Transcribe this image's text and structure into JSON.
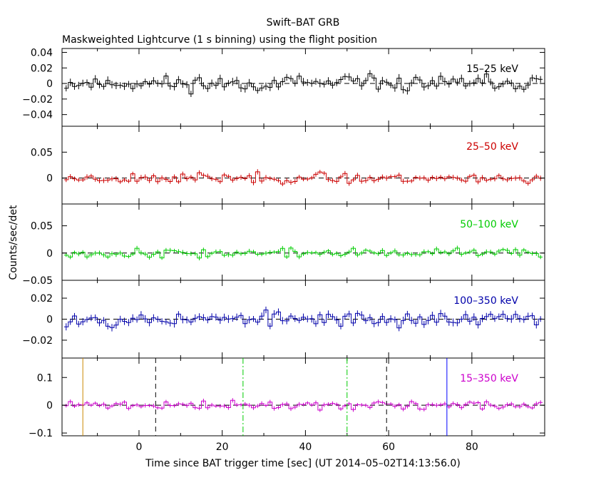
{
  "chart_data": {
    "type": "line",
    "title": "Swift–BAT GRB",
    "subtitle": "Maskweighted Lightcurve (1 s binning) using the flight position",
    "xlabel": "Time since BAT trigger time [sec] (UT 2014–05–02T14:13:56.0)",
    "ylabel": "Counts/sec/det",
    "xlim": [
      -18.5,
      97.5
    ],
    "x_ticks": [
      0,
      20,
      40,
      60,
      80
    ],
    "x_tick_labels": [
      "0",
      "20",
      "40",
      "60",
      "80"
    ],
    "panels": [
      {
        "name": "15–25 keV",
        "color": "#000000",
        "ylim": [
          -0.055,
          0.045
        ],
        "y_ticks": [
          -0.04,
          -0.02,
          0,
          0.02,
          0.04
        ],
        "y_tick_labels": [
          "−0.04",
          "−0.02",
          "0",
          "0.02",
          "0.04"
        ],
        "noise_amplitude": 0.007,
        "seed": 11
      },
      {
        "name": "25–50 keV",
        "color": "#cc0000",
        "ylim": [
          -0.05,
          0.1
        ],
        "y_ticks": [
          0,
          0.05
        ],
        "y_tick_labels": [
          "0",
          "0.05"
        ],
        "noise_amplitude": 0.007,
        "seed": 23
      },
      {
        "name": "50–100 keV",
        "color": "#00cc00",
        "ylim": [
          -0.05,
          0.09
        ],
        "y_ticks": [
          -0.05,
          0,
          0.05
        ],
        "y_tick_labels": [
          "−0.05",
          "0",
          "0.05"
        ],
        "noise_amplitude": 0.006,
        "seed": 37
      },
      {
        "name": "100–350 keV",
        "color": "#0000aa",
        "ylim": [
          -0.037,
          0.037
        ],
        "y_ticks": [
          -0.02,
          0,
          0.02
        ],
        "y_tick_labels": [
          "−0.02",
          "0",
          "0.02"
        ],
        "noise_amplitude": 0.005,
        "seed": 53
      },
      {
        "name": "15–350 keV",
        "color": "#cc00cc",
        "ylim": [
          -0.11,
          0.17
        ],
        "y_ticks": [
          -0.1,
          0,
          0.1
        ],
        "y_tick_labels": [
          "−0.1",
          "0",
          "0.1"
        ],
        "noise_amplitude": 0.011,
        "seed": 71
      }
    ],
    "markers": [
      {
        "x": -13.5,
        "color": "#cc8800",
        "style": "solid"
      },
      {
        "x": 4.0,
        "color": "#000000",
        "style": "dashed"
      },
      {
        "x": 25.0,
        "color": "#00cc00",
        "style": "dashdot"
      },
      {
        "x": 50.0,
        "color": "#00cc00",
        "style": "dashdot"
      },
      {
        "x": 59.5,
        "color": "#000000",
        "style": "dashed"
      },
      {
        "x": 74.0,
        "color": "#0000ff",
        "style": "solid"
      }
    ]
  }
}
